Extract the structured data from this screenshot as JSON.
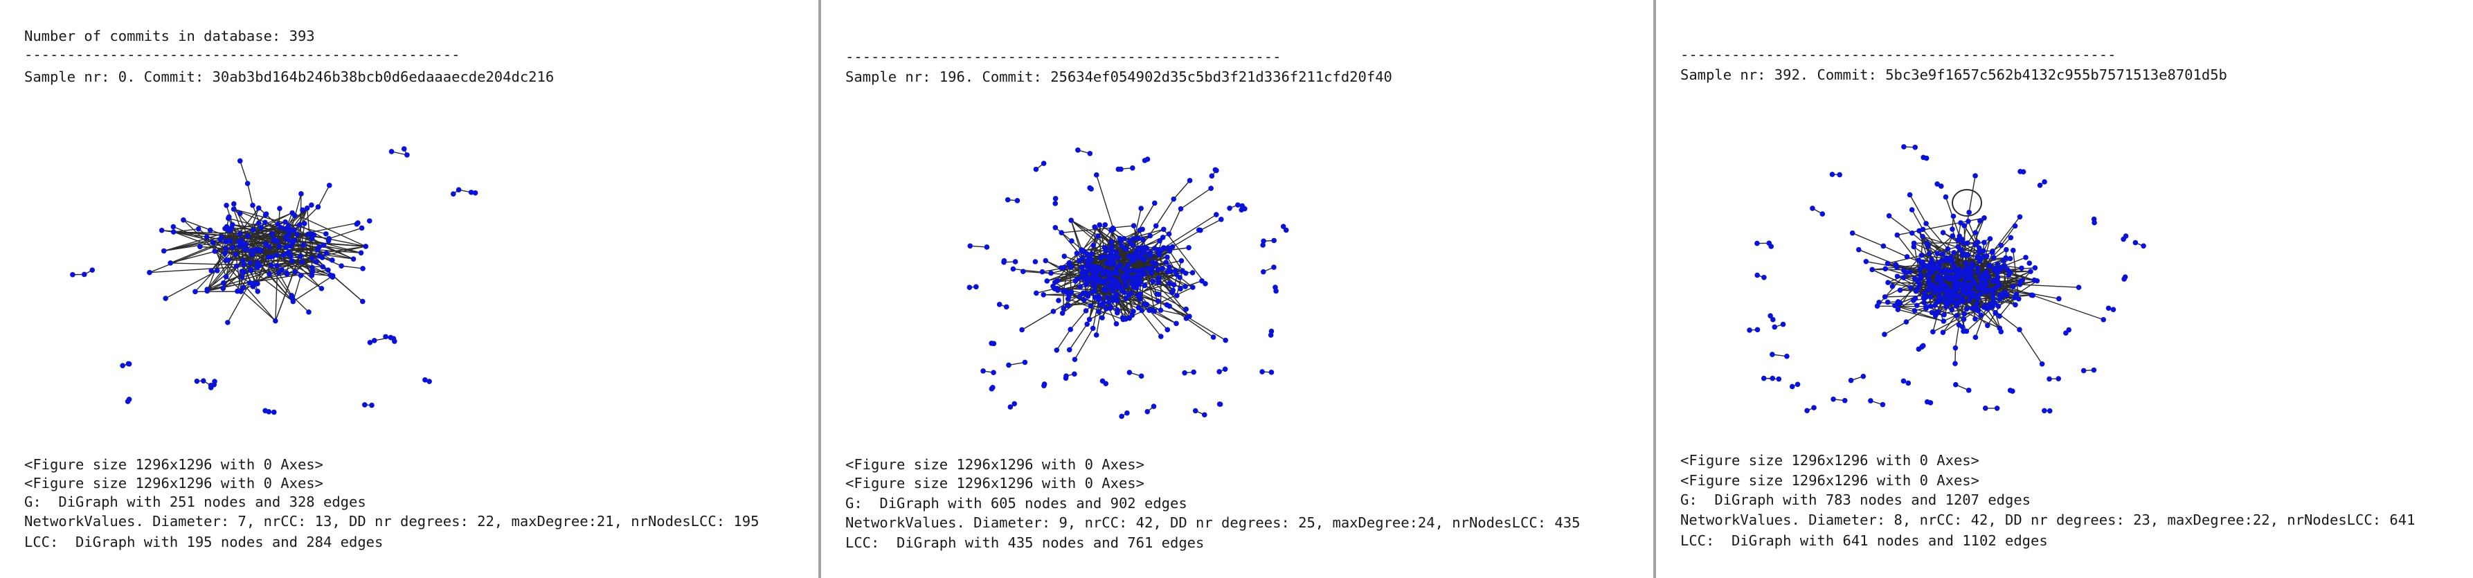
{
  "panels": [
    {
      "header_lines": [
        "Number of commits in database: 393",
        "---------------------------------------------------",
        "Sample nr: 0. Commit: 30ab3bd164b246b38bcb0d6edaaaecde204dc216"
      ],
      "footer_lines": [
        "<Figure size 1296x1296 with 0 Axes>",
        "<Figure size 1296x1296 with 0 Axes>",
        "G:  DiGraph with 251 nodes and 328 edges",
        "NetworkValues. Diameter: 7, nrCC: 13, DD nr degrees: 22, maxDegree:21, nrNodesLCC: 195",
        "LCC:  DiGraph with 195 nodes and 284 edges"
      ]
    },
    {
      "header_lines": [
        "---------------------------------------------------",
        "Sample nr: 196. Commit: 25634ef054902d35c5bd3f21d336f211cfd20f40"
      ],
      "footer_lines": [
        "<Figure size 1296x1296 with 0 Axes>",
        "<Figure size 1296x1296 with 0 Axes>",
        "G:  DiGraph with 605 nodes and 902 edges",
        "NetworkValues. Diameter: 9, nrCC: 42, DD nr degrees: 25, maxDegree:24, nrNodesLCC: 435",
        "LCC:  DiGraph with 435 nodes and 761 edges"
      ]
    },
    {
      "header_lines": [
        "---------------------------------------------------",
        "Sample nr: 392. Commit: 5bc3e9f1657c562b4132c955b7571513e8701d5b"
      ],
      "footer_lines": [
        "<Figure size 1296x1296 with 0 Axes>",
        "<Figure size 1296x1296 with 0 Axes>",
        "G:  DiGraph with 783 nodes and 1207 edges",
        "NetworkValues. Diameter: 8, nrCC: 42, DD nr degrees: 23, maxDegree:22, nrNodesLCC: 641",
        "LCC:  DiGraph with 641 nodes and 1102 edges"
      ]
    }
  ],
  "colors": {
    "node": "#0a12d8",
    "edge": "#2b2b2b",
    "separator": "#a3a3a3",
    "background": "#ffffff",
    "text": "#1a1a1a"
  }
}
